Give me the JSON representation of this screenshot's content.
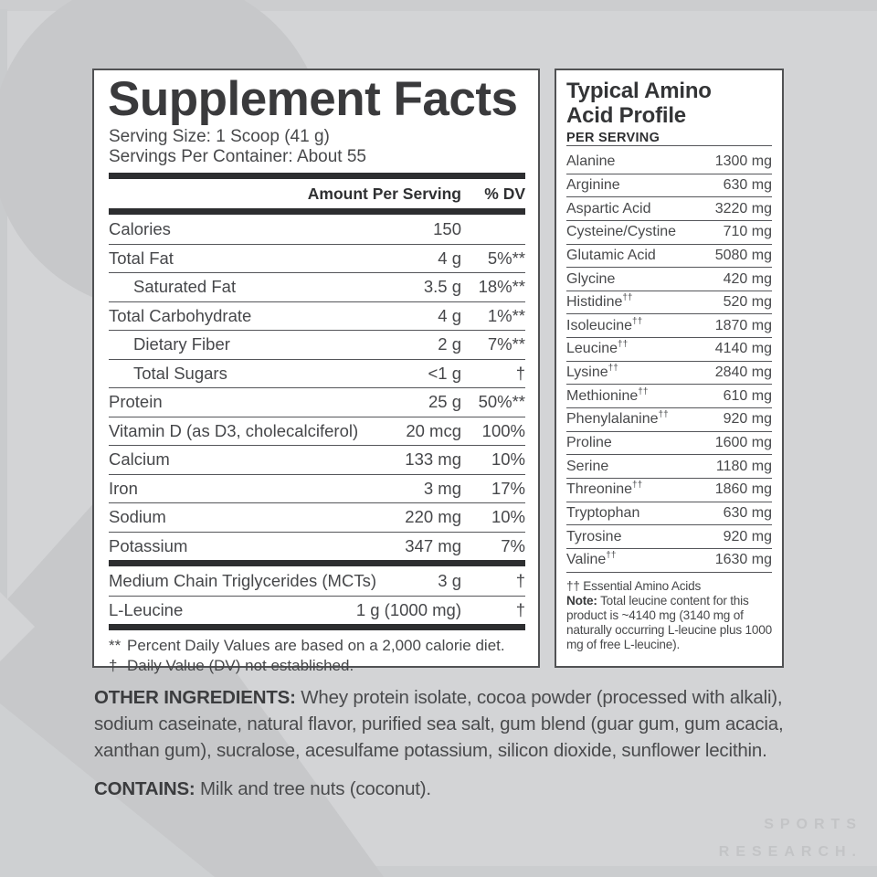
{
  "colors": {
    "background": "#d3d4d6",
    "background_shape": "#c7c8ca",
    "panel_border": "#515254",
    "thick_bar": "#2d2e30",
    "body_text": "#46474a",
    "watermark": "#c3c4c6"
  },
  "supplement": {
    "title": "Supplement Facts",
    "serving_size": "Serving Size: 1 Scoop (41 g)",
    "servings_per_container": "Servings Per Container: About 55",
    "columns": {
      "amount": "Amount Per Serving",
      "dv": "% DV"
    },
    "rows": [
      {
        "label": "Calories",
        "indent": false,
        "amount": "150",
        "dv": ""
      },
      {
        "label": "Total Fat",
        "indent": false,
        "amount": "4 g",
        "dv": "5%**"
      },
      {
        "label": "Saturated Fat",
        "indent": true,
        "amount": "3.5 g",
        "dv": "18%**"
      },
      {
        "label": "Total Carbohydrate",
        "indent": false,
        "amount": "4 g",
        "dv": "1%**"
      },
      {
        "label": "Dietary Fiber",
        "indent": true,
        "amount": "2 g",
        "dv": "7%**"
      },
      {
        "label": "Total Sugars",
        "indent": true,
        "amount": "<1 g",
        "dv": "†"
      },
      {
        "label": "Protein",
        "indent": false,
        "amount": "25 g",
        "dv": "50%**"
      },
      {
        "label": "Vitamin D (as D3, cholecalciferol)",
        "indent": false,
        "amount": "20 mcg",
        "dv": "100%"
      },
      {
        "label": "Calcium",
        "indent": false,
        "amount": "133 mg",
        "dv": "10%"
      },
      {
        "label": "Iron",
        "indent": false,
        "amount": "3 mg",
        "dv": "17%"
      },
      {
        "label": "Sodium",
        "indent": false,
        "amount": "220 mg",
        "dv": "10%"
      },
      {
        "label": "Potassium",
        "indent": false,
        "amount": "347 mg",
        "dv": "7%"
      }
    ],
    "extra_rows": [
      {
        "label": "Medium Chain Triglycerides (MCTs)",
        "amount": "3 g",
        "dv": "†"
      },
      {
        "label": "L-Leucine",
        "amount": "1 g (1000 mg)",
        "dv": "†"
      }
    ],
    "footnotes": [
      {
        "marker": "**",
        "text": "Percent Daily Values are based on a 2,000 calorie diet."
      },
      {
        "marker": "†",
        "text": "Daily Value (DV) not established."
      }
    ]
  },
  "amino": {
    "title_lines": [
      "Typical Amino",
      "Acid Profile"
    ],
    "subtitle": "PER SERVING",
    "rows": [
      {
        "name": "Alanine",
        "sup": "",
        "value": "1300 mg"
      },
      {
        "name": "Arginine",
        "sup": "",
        "value": "630 mg"
      },
      {
        "name": "Aspartic Acid",
        "sup": "",
        "value": "3220 mg"
      },
      {
        "name": "Cysteine/Cystine",
        "sup": "",
        "value": "710 mg"
      },
      {
        "name": "Glutamic Acid",
        "sup": "",
        "value": "5080 mg"
      },
      {
        "name": "Glycine",
        "sup": "",
        "value": "420 mg"
      },
      {
        "name": "Histidine",
        "sup": "††",
        "value": "520 mg"
      },
      {
        "name": "Isoleucine",
        "sup": "††",
        "value": "1870 mg"
      },
      {
        "name": "Leucine",
        "sup": "††",
        "value": "4140 mg"
      },
      {
        "name": "Lysine",
        "sup": "††",
        "value": "2840 mg"
      },
      {
        "name": "Methionine",
        "sup": "††",
        "value": "610 mg"
      },
      {
        "name": "Phenylalanine",
        "sup": "††",
        "value": "920 mg"
      },
      {
        "name": "Proline",
        "sup": "",
        "value": "1600 mg"
      },
      {
        "name": "Serine",
        "sup": "",
        "value": "1180 mg"
      },
      {
        "name": "Threonine",
        "sup": "††",
        "value": "1860 mg"
      },
      {
        "name": "Tryptophan",
        "sup": "",
        "value": "630 mg"
      },
      {
        "name": "Tyrosine",
        "sup": "",
        "value": "920 mg"
      },
      {
        "name": "Valine",
        "sup": "††",
        "value": "1630 mg"
      }
    ],
    "footnote_marker": "†† Essential Amino Acids",
    "note_label": "Note:",
    "note_text": " Total leucine content for this product is ~4140 mg (3140 mg of naturally occurring L-leucine plus 1000 mg of free L-leucine)."
  },
  "other_ingredients": {
    "label": "OTHER INGREDIENTS:",
    "text": " Whey protein isolate, cocoa powder (processed with alkali), sodium caseinate, natural flavor, purified sea salt, gum blend (guar gum, gum acacia, xanthan gum), sucralose, acesulfame potassium, silicon dioxide, sunflower lecithin.",
    "contains_label": "CONTAINS:",
    "contains_text": " Milk and tree nuts (coconut)."
  },
  "watermark": {
    "line1": "SPORTS",
    "line2": "RESEARCH."
  }
}
